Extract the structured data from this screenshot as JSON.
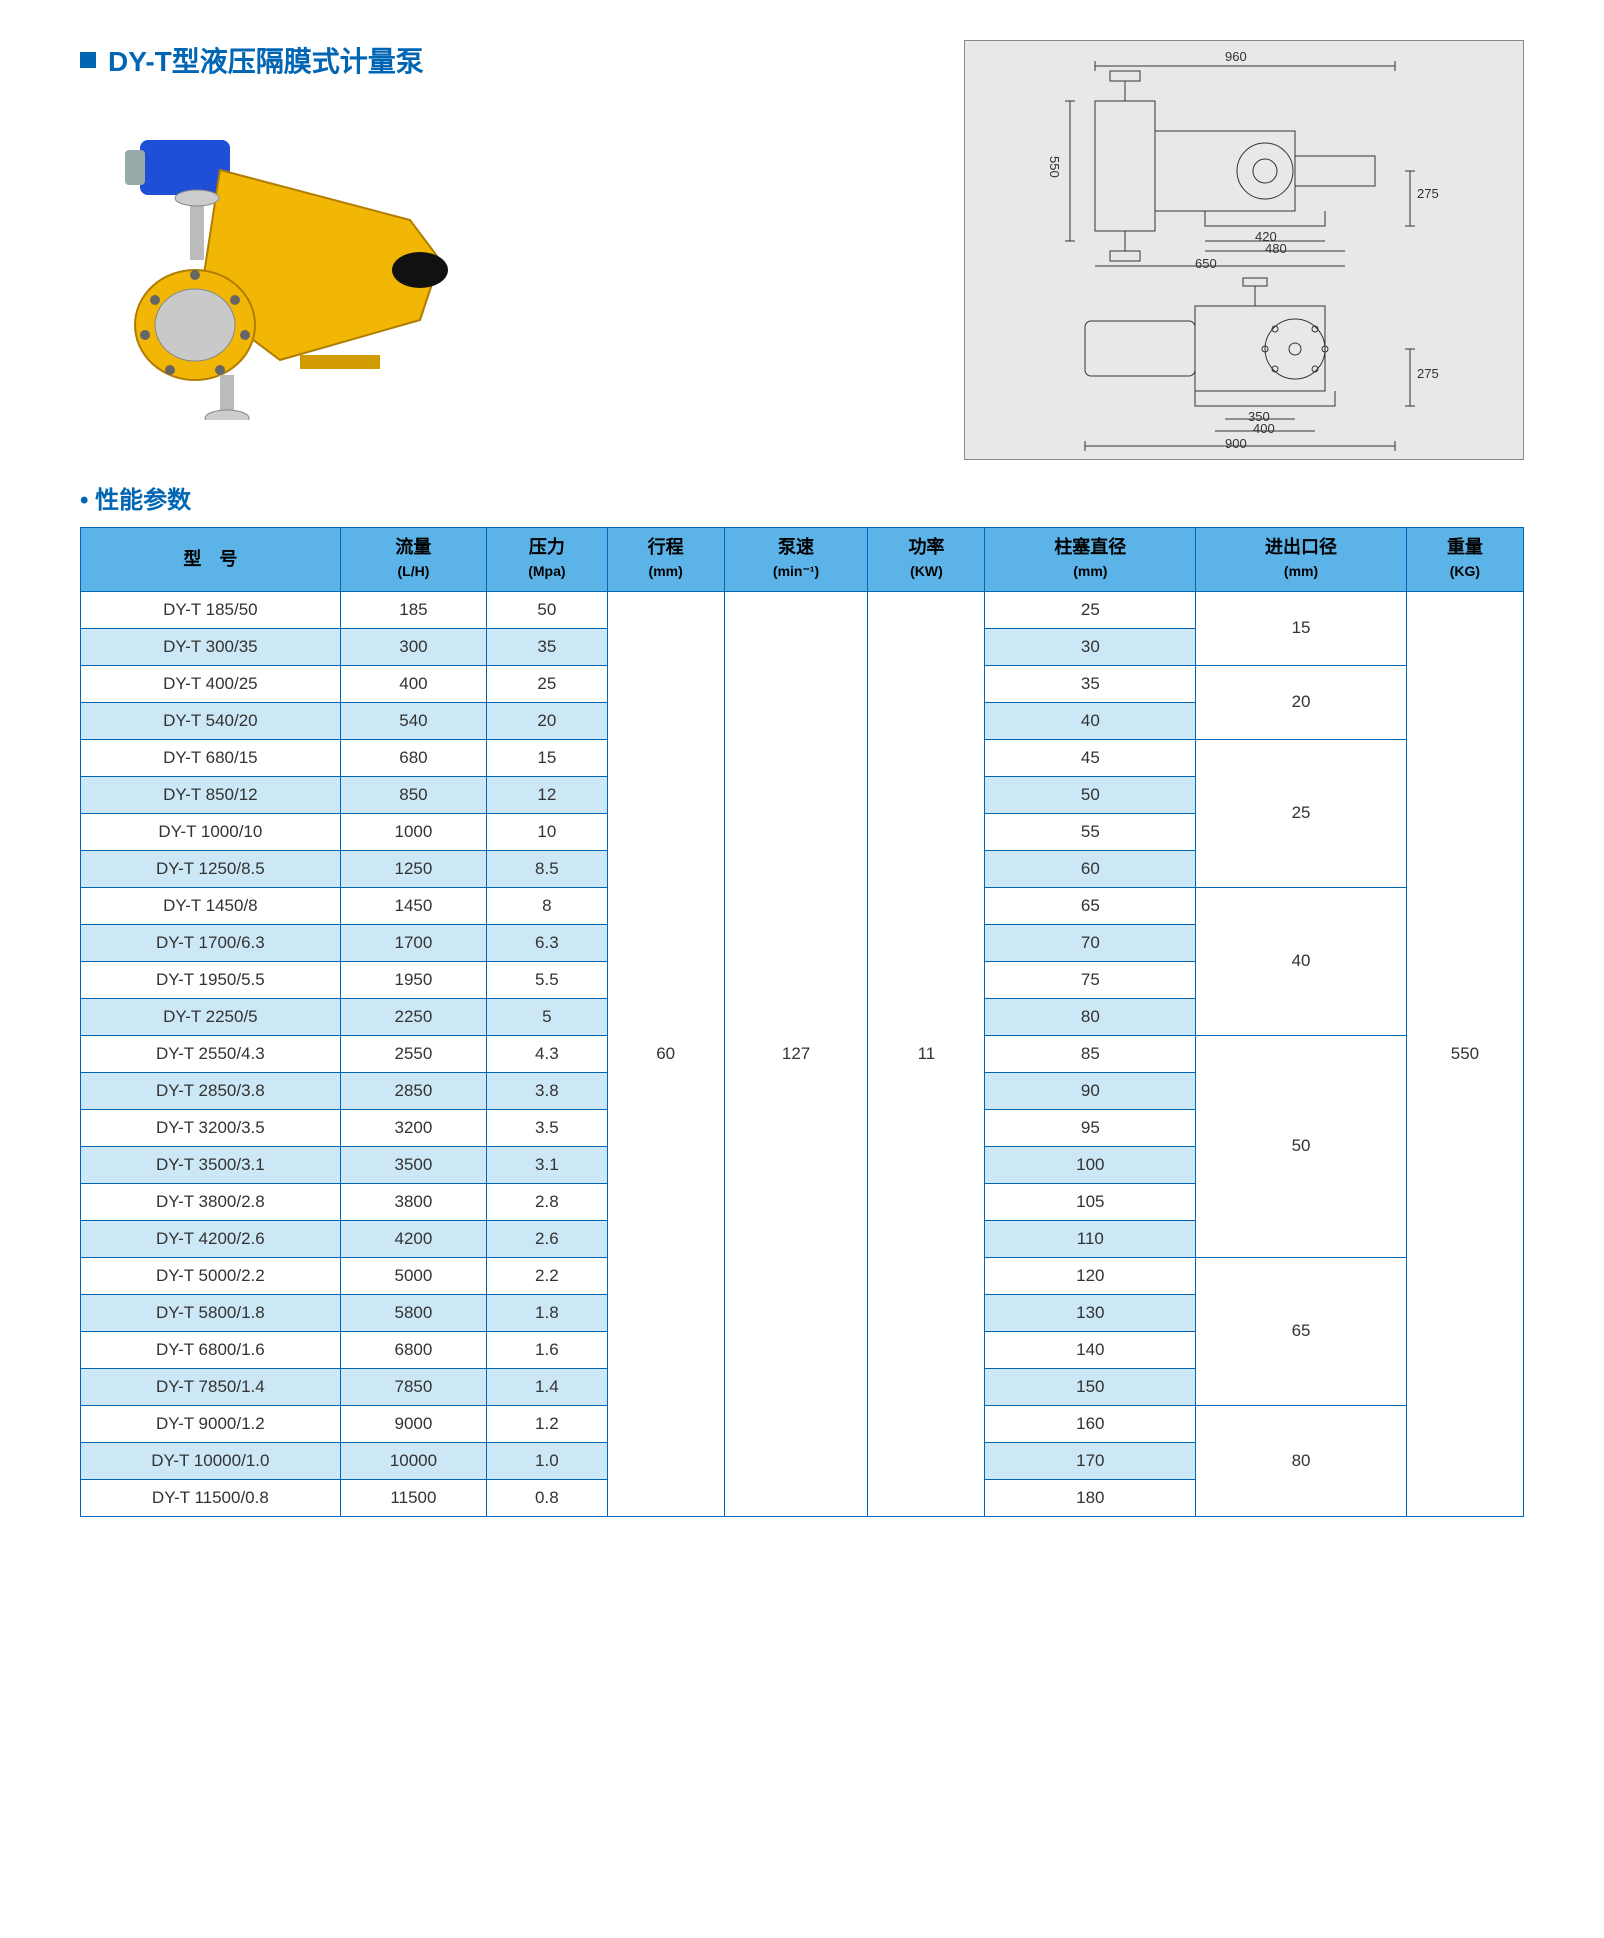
{
  "title": "DY-T型液压隔膜式计量泵",
  "section_params_title": "性能参数",
  "product_image_alt": "DY-T hydraulic diaphragm metering pump (yellow body, blue motor)",
  "diagram": {
    "top_view_dims": {
      "w_total": "960",
      "h_total": "550",
      "h_half": "275",
      "inner_w1": "420",
      "inner_w2": "480",
      "inner_w3": "650"
    },
    "side_view_dims": {
      "w_total": "900",
      "h_half": "275",
      "base_w1": "350",
      "base_w2": "400"
    }
  },
  "table": {
    "columns": [
      {
        "l1": "型　号",
        "l2": ""
      },
      {
        "l1": "流量",
        "l2": "(L/H)"
      },
      {
        "l1": "压力",
        "l2": "(Mpa)"
      },
      {
        "l1": "行程",
        "l2": "(mm)"
      },
      {
        "l1": "泵速",
        "l2": "(min⁻¹)"
      },
      {
        "l1": "功率",
        "l2": "(KW)"
      },
      {
        "l1": "柱塞直径",
        "l2": "(mm)"
      },
      {
        "l1": "进出口径",
        "l2": "(mm)"
      },
      {
        "l1": "重量",
        "l2": "(KG)"
      }
    ],
    "shared": {
      "stroke": "60",
      "speed": "127",
      "power": "11",
      "weight": "550"
    },
    "port_groups": [
      {
        "port": "15",
        "span": 2
      },
      {
        "port": "20",
        "span": 2
      },
      {
        "port": "25",
        "span": 4
      },
      {
        "port": "40",
        "span": 4
      },
      {
        "port": "50",
        "span": 6
      },
      {
        "port": "65",
        "span": 4
      },
      {
        "port": "80",
        "span": 3
      }
    ],
    "rows": [
      {
        "model": "DY-T 185/50",
        "flow": "185",
        "pressure": "50",
        "plunger": "25"
      },
      {
        "model": "DY-T 300/35",
        "flow": "300",
        "pressure": "35",
        "plunger": "30"
      },
      {
        "model": "DY-T 400/25",
        "flow": "400",
        "pressure": "25",
        "plunger": "35"
      },
      {
        "model": "DY-T 540/20",
        "flow": "540",
        "pressure": "20",
        "plunger": "40"
      },
      {
        "model": "DY-T 680/15",
        "flow": "680",
        "pressure": "15",
        "plunger": "45"
      },
      {
        "model": "DY-T 850/12",
        "flow": "850",
        "pressure": "12",
        "plunger": "50"
      },
      {
        "model": "DY-T 1000/10",
        "flow": "1000",
        "pressure": "10",
        "plunger": "55"
      },
      {
        "model": "DY-T 1250/8.5",
        "flow": "1250",
        "pressure": "8.5",
        "plunger": "60"
      },
      {
        "model": "DY-T 1450/8",
        "flow": "1450",
        "pressure": "8",
        "plunger": "65"
      },
      {
        "model": "DY-T 1700/6.3",
        "flow": "1700",
        "pressure": "6.3",
        "plunger": "70"
      },
      {
        "model": "DY-T 1950/5.5",
        "flow": "1950",
        "pressure": "5.5",
        "plunger": "75"
      },
      {
        "model": "DY-T 2250/5",
        "flow": "2250",
        "pressure": "5",
        "plunger": "80"
      },
      {
        "model": "DY-T 2550/4.3",
        "flow": "2550",
        "pressure": "4.3",
        "plunger": "85"
      },
      {
        "model": "DY-T 2850/3.8",
        "flow": "2850",
        "pressure": "3.8",
        "plunger": "90"
      },
      {
        "model": "DY-T 3200/3.5",
        "flow": "3200",
        "pressure": "3.5",
        "plunger": "95"
      },
      {
        "model": "DY-T 3500/3.1",
        "flow": "3500",
        "pressure": "3.1",
        "plunger": "100"
      },
      {
        "model": "DY-T 3800/2.8",
        "flow": "3800",
        "pressure": "2.8",
        "plunger": "105"
      },
      {
        "model": "DY-T 4200/2.6",
        "flow": "4200",
        "pressure": "2.6",
        "plunger": "110"
      },
      {
        "model": "DY-T 5000/2.2",
        "flow": "5000",
        "pressure": "2.2",
        "plunger": "120"
      },
      {
        "model": "DY-T 5800/1.8",
        "flow": "5800",
        "pressure": "1.8",
        "plunger": "130"
      },
      {
        "model": "DY-T 6800/1.6",
        "flow": "6800",
        "pressure": "1.6",
        "plunger": "140"
      },
      {
        "model": "DY-T 7850/1.4",
        "flow": "7850",
        "pressure": "1.4",
        "plunger": "150"
      },
      {
        "model": "DY-T 9000/1.2",
        "flow": "9000",
        "pressure": "1.2",
        "plunger": "160"
      },
      {
        "model": "DY-T 10000/1.0",
        "flow": "10000",
        "pressure": "1.0",
        "plunger": "170"
      },
      {
        "model": "DY-T 11500/0.8",
        "flow": "11500",
        "pressure": "0.8",
        "plunger": "180"
      }
    ]
  },
  "colors": {
    "brand_blue": "#0066b3",
    "header_bg": "#5cb3e8",
    "stripe_bg": "#cce7f5"
  }
}
